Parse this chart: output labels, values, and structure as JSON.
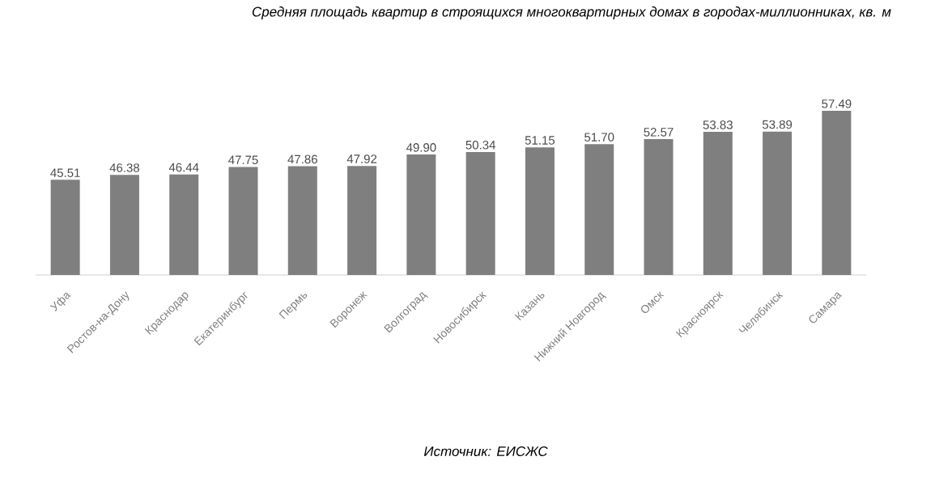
{
  "chart_data": {
    "type": "bar",
    "title": "Средняя площадь квартир в строящихся многоквартирных домах в городах-миллионниках, кв. м",
    "categories": [
      "Уфа",
      "Ростов-на-Дону",
      "Краснодар",
      "Екатеринбург",
      "Пермь",
      "Воронеж",
      "Волгоград",
      "Новосибирск",
      "Казань",
      "Нижний Новгород",
      "Омск",
      "Красноярск",
      "Челябинск",
      "Самара"
    ],
    "values": [
      45.51,
      46.38,
      46.44,
      47.75,
      47.86,
      47.92,
      49.9,
      50.34,
      51.15,
      51.7,
      52.57,
      53.83,
      53.89,
      57.49
    ],
    "value_labels": [
      "45.51",
      "46.38",
      "46.44",
      "47.75",
      "47.86",
      "47.92",
      "49.90",
      "50.34",
      "51.15",
      "51.70",
      "52.57",
      "53.83",
      "53.89",
      "57.49"
    ],
    "color": "#7f7f7f",
    "ylim": [
      29,
      57.49
    ],
    "data_labels": true,
    "annotations": [
      "Источник: ЕИСЖС"
    ]
  }
}
